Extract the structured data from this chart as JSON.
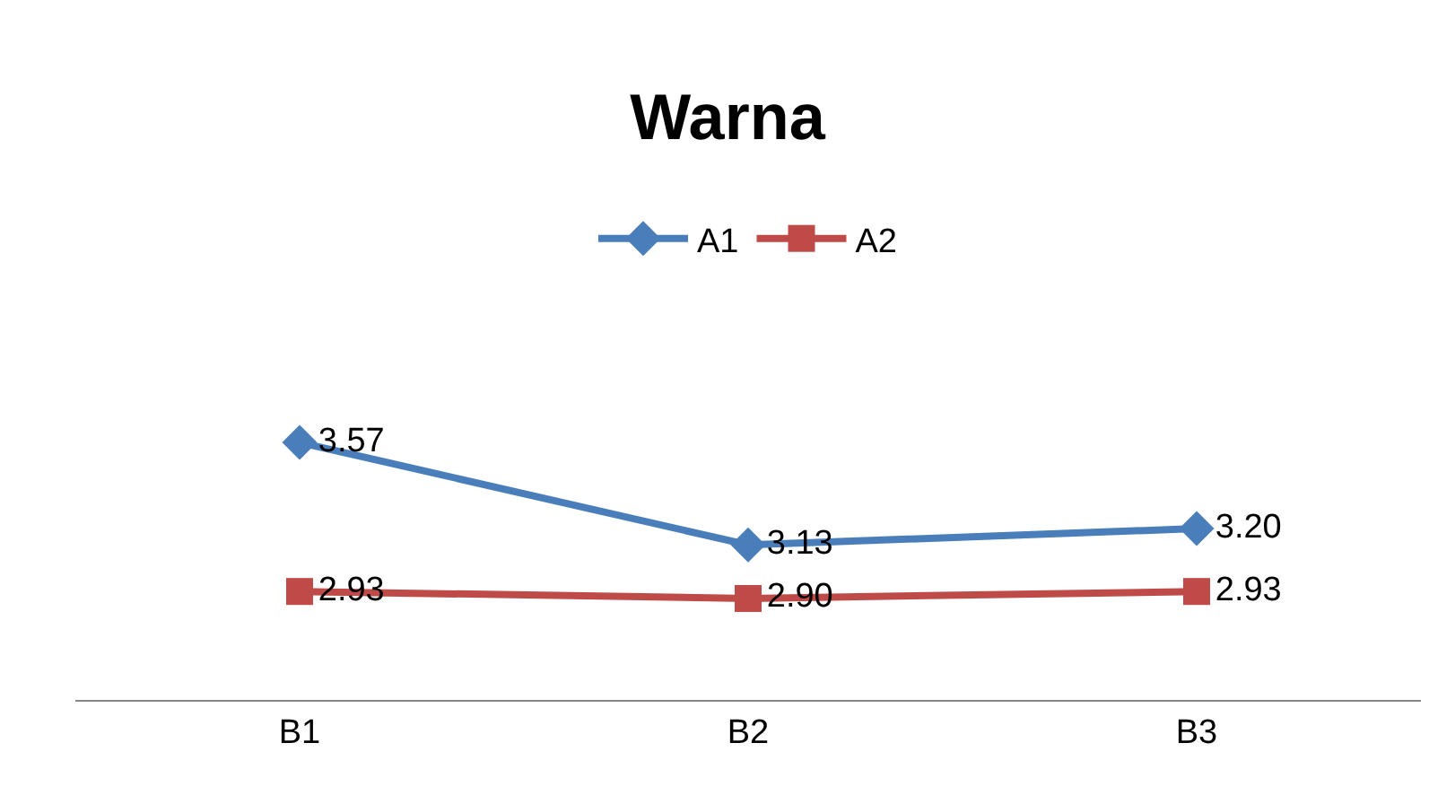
{
  "chart_data": {
    "type": "line",
    "title": "Warna",
    "categories": [
      "B1",
      "B2",
      "B3"
    ],
    "series": [
      {
        "name": "A1",
        "color": "#4a7ebb",
        "marker": "diamond",
        "values": [
          3.57,
          3.13,
          3.2
        ],
        "value_labels": [
          "3.57",
          "3.13",
          "3.20"
        ]
      },
      {
        "name": "A2",
        "color": "#be4b48",
        "marker": "square",
        "values": [
          2.93,
          2.9,
          2.93
        ],
        "value_labels": [
          "2.93",
          "2.90",
          "2.93"
        ]
      }
    ],
    "legend": "top",
    "tick_labels": "x",
    "line_style": "solid"
  }
}
